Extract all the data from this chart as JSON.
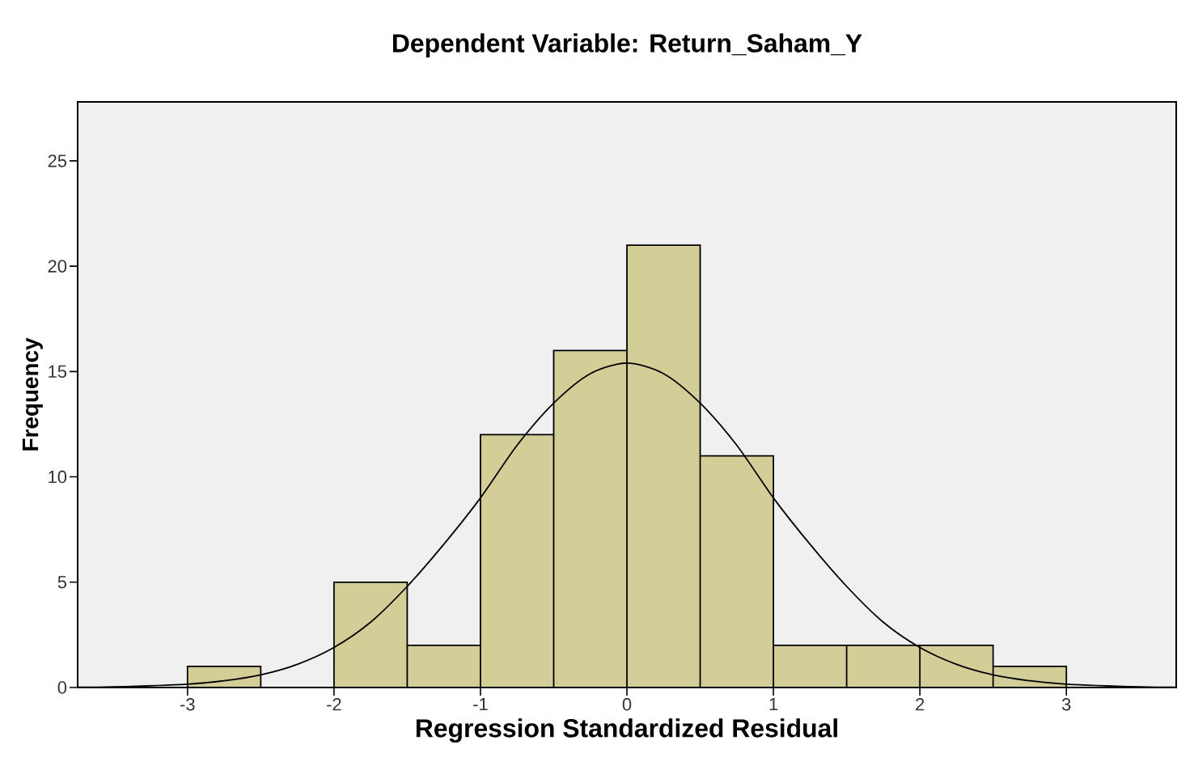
{
  "chart_data": {
    "type": "histogram",
    "title": "Dependent Variable: Return_Saham_Y",
    "xlabel": "Regression Standardized Residual",
    "ylabel": "Frequency",
    "bins": [
      -3,
      -2.5,
      -2,
      -1.5,
      -1,
      -0.5,
      0,
      0.5,
      1,
      1.5,
      2,
      2.5,
      3
    ],
    "values": [
      1,
      0,
      5,
      2,
      12,
      16,
      21,
      11,
      2,
      2,
      2,
      1
    ],
    "color": "#d3ce98",
    "series": [
      {
        "type": "line",
        "color": "#000000",
        "x": [
          -3.75,
          -3.5,
          -3,
          -2.75,
          -2.5,
          -2.25,
          -2,
          -1.75,
          -1.5,
          -1.25,
          -1,
          -0.75,
          -0.5,
          -0.25,
          0,
          0.25,
          0.5,
          0.75,
          1,
          1.25,
          1.5,
          1.75,
          2,
          2.25,
          2.5,
          2.75,
          3,
          3.5,
          3.75
        ],
        "values": [
          0.01,
          0.03,
          0.16,
          0.32,
          0.6,
          1.1,
          1.9,
          3.1,
          4.8,
          6.8,
          9.0,
          11.5,
          13.5,
          14.9,
          15.4,
          14.9,
          13.5,
          11.5,
          9.0,
          6.8,
          4.8,
          3.1,
          1.9,
          1.1,
          0.6,
          0.32,
          0.16,
          0.03,
          0.01
        ]
      }
    ],
    "xlim": [
      -3.75,
      3.75
    ],
    "ylim": [
      0,
      27.8
    ],
    "xticks": [
      -3,
      -2,
      -1,
      0,
      1,
      2,
      3
    ],
    "yticks": [
      0,
      5,
      10,
      15,
      20,
      25
    ]
  }
}
